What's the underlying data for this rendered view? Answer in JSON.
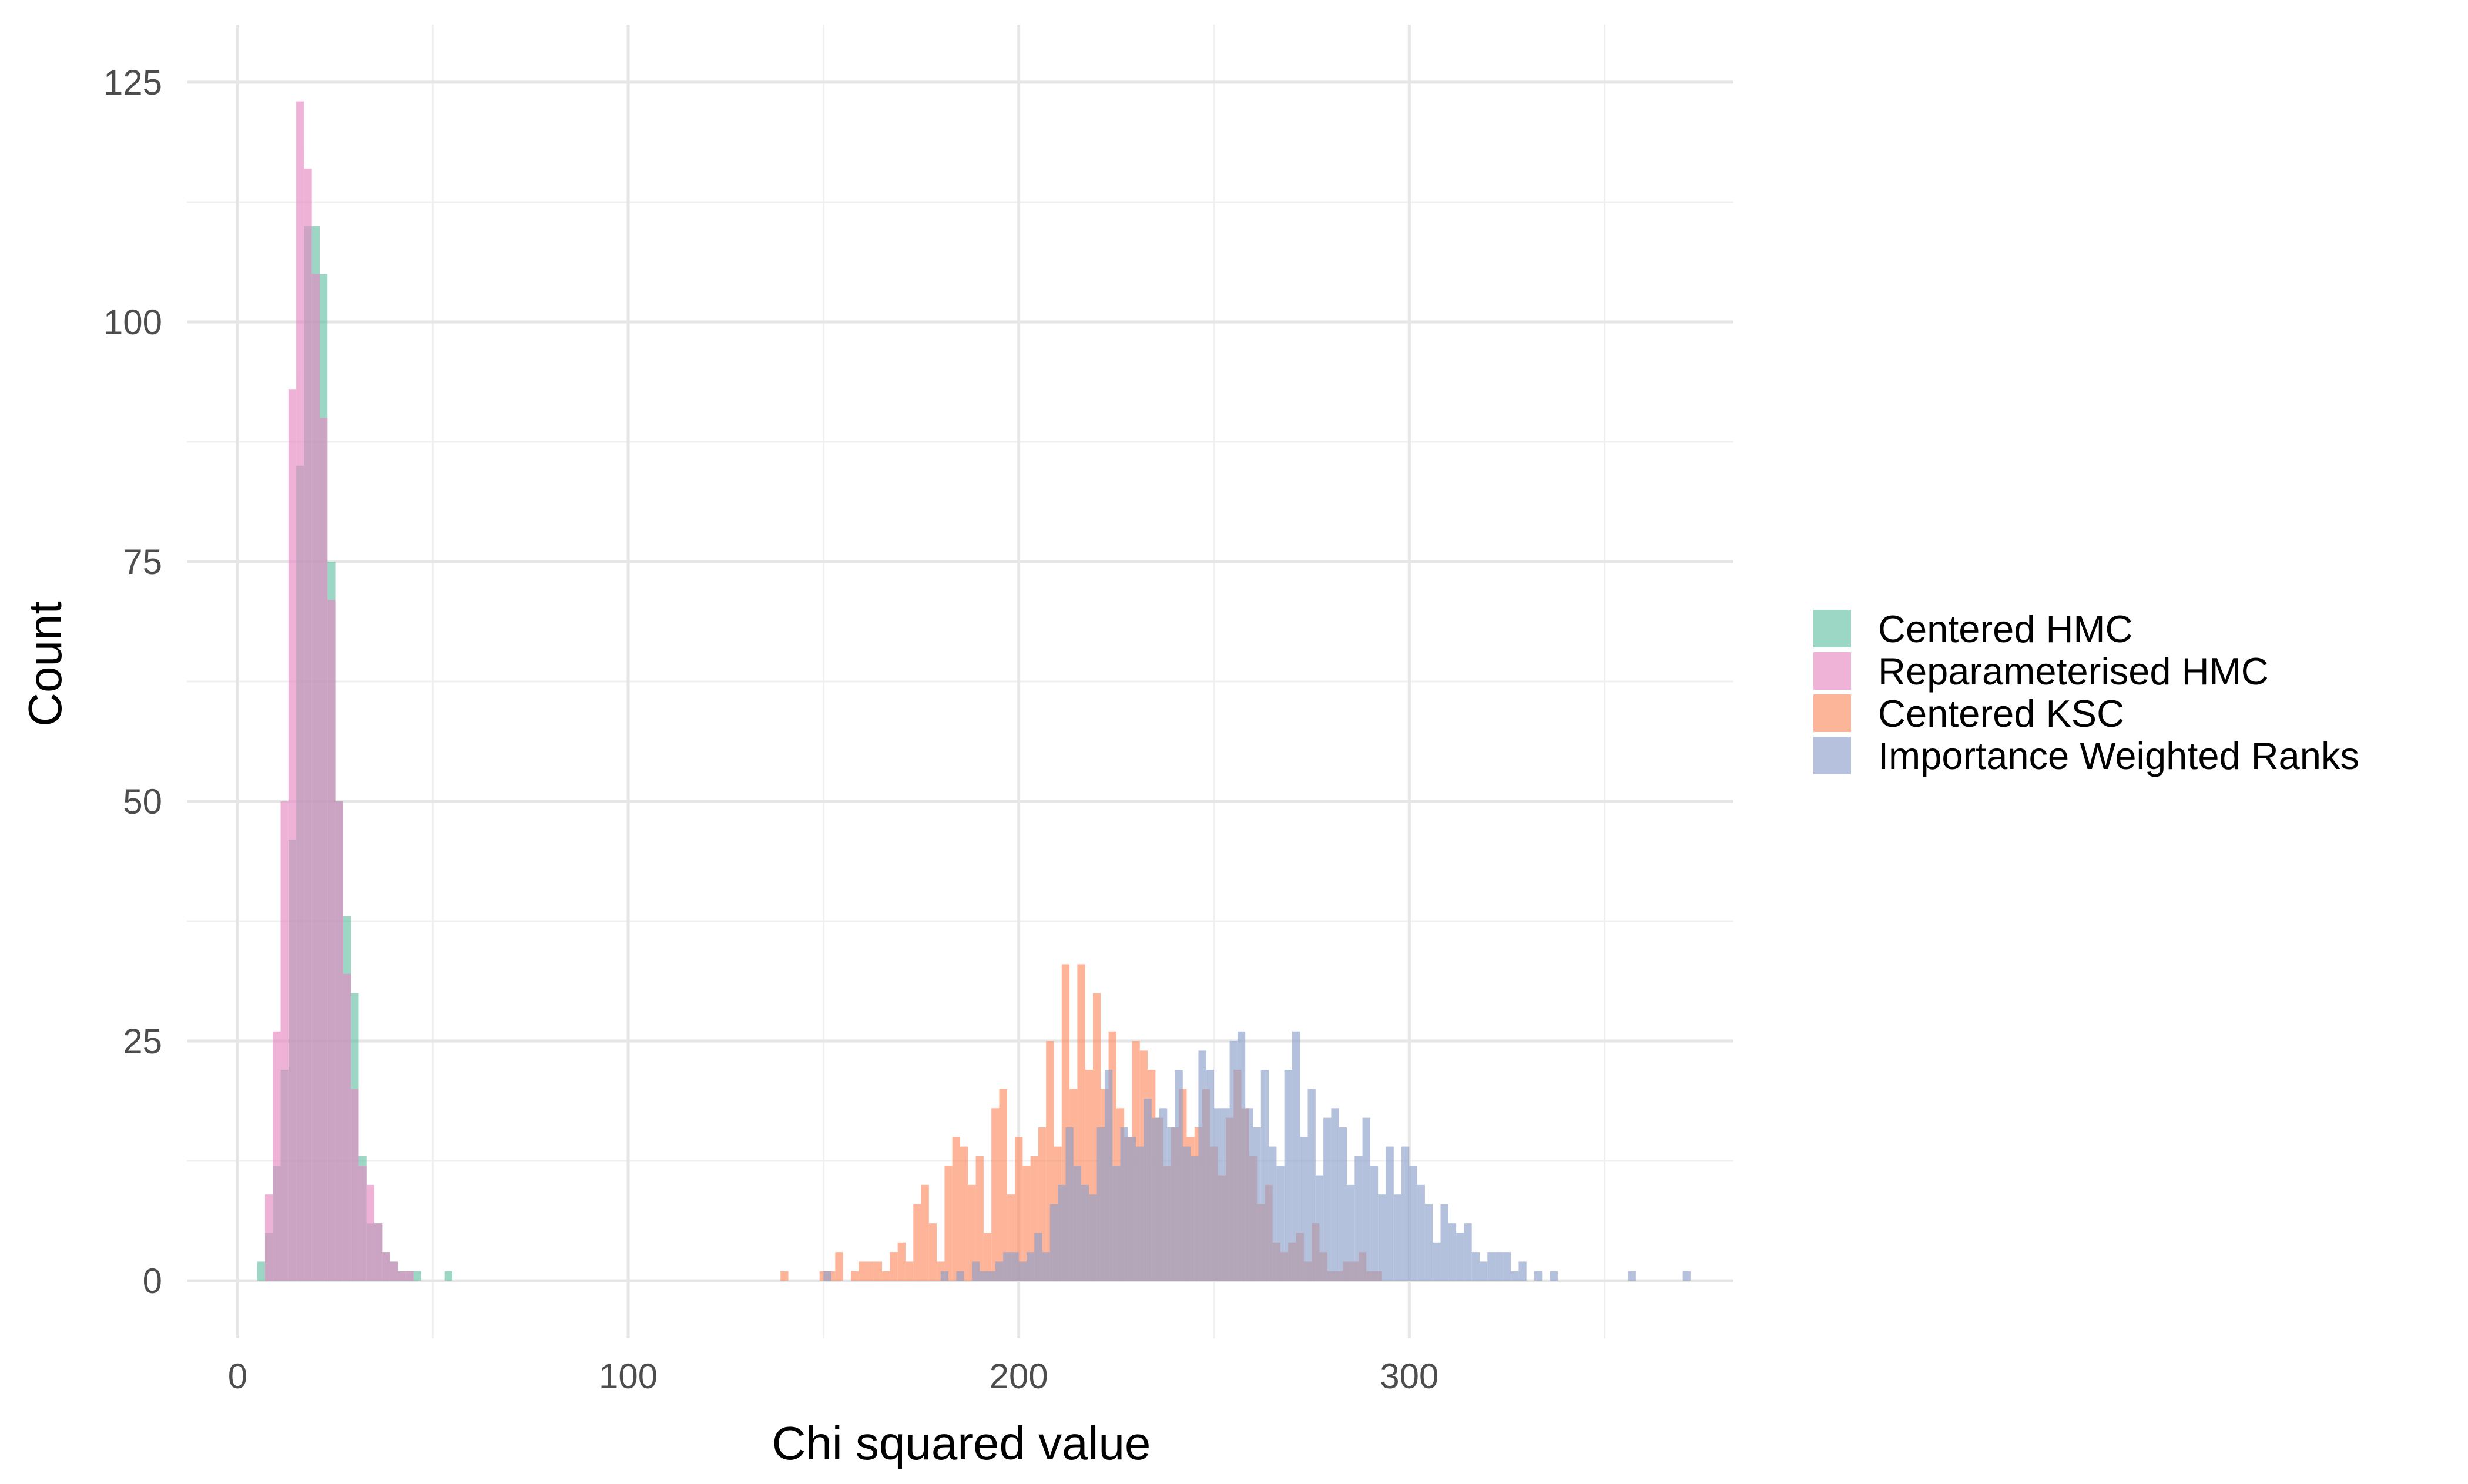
{
  "chart_data": {
    "type": "histogram",
    "title": "",
    "xlabel": "Chi squared value",
    "ylabel": "Count",
    "xlim": [
      -13,
      383
    ],
    "ylim": [
      -6,
      131
    ],
    "x_ticks": [
      0,
      100,
      200,
      300
    ],
    "x_tick_labels": [
      "0",
      "100",
      "200",
      "300"
    ],
    "y_ticks": [
      0,
      25,
      50,
      75,
      100,
      125
    ],
    "y_tick_labels": [
      "0",
      "25",
      "50",
      "75",
      "100",
      "125"
    ],
    "x_minor_ticks": [
      50,
      150,
      250,
      350
    ],
    "y_minor_ticks": [
      12.5,
      37.5,
      62.5,
      87.5,
      112.5
    ],
    "grid": true,
    "legend_position": "right",
    "bin_width": 2,
    "series": [
      {
        "name": "Centered HMC",
        "color": "#66c2a5",
        "bin_start": 5,
        "counts": [
          2,
          5,
          12,
          22,
          46,
          85,
          110,
          110,
          105,
          75,
          50,
          38,
          30,
          13,
          6,
          6,
          3,
          2,
          1,
          1,
          1,
          0,
          0,
          0,
          1
        ]
      },
      {
        "name": "Reparameterised HMC",
        "color": "#e78ac3",
        "bin_start": 7,
        "counts": [
          9,
          26,
          50,
          93,
          123,
          116,
          105,
          90,
          71,
          50,
          32,
          20,
          12,
          10,
          6,
          3,
          2,
          1,
          1
        ]
      },
      {
        "name": "Centered KSC",
        "color": "#fc8d62",
        "bin_start": 139,
        "counts": [
          1,
          0,
          0,
          0,
          0,
          1,
          1,
          3,
          0,
          1,
          2,
          2,
          2,
          1,
          3,
          4,
          2,
          8,
          10,
          6,
          2,
          12,
          15,
          14,
          10,
          13,
          5,
          18,
          20,
          9,
          15,
          12,
          13,
          16,
          25,
          14,
          33,
          20,
          33,
          22,
          30,
          20,
          26,
          18,
          15,
          25,
          24,
          22,
          17,
          12,
          16,
          20,
          15,
          16,
          20,
          14,
          11,
          17,
          22,
          18,
          13,
          8,
          10,
          4,
          3,
          4,
          5,
          2,
          6,
          3,
          1,
          1,
          2,
          2,
          3,
          1,
          1
        ]
      },
      {
        "name": "Importance Weighted Ranks",
        "color": "#8da0cb",
        "bin_start": 150,
        "counts": [
          1,
          0,
          0,
          0,
          0,
          0,
          0,
          0,
          0,
          0,
          0,
          0,
          0,
          0,
          0,
          1,
          0,
          1,
          0,
          2,
          1,
          1,
          2,
          3,
          3,
          2,
          3,
          5,
          3,
          8,
          10,
          16,
          12,
          10,
          9,
          16,
          22,
          12,
          16,
          15,
          14,
          19,
          17,
          18,
          16,
          22,
          14,
          13,
          24,
          22,
          18,
          18,
          25,
          26,
          18,
          16,
          22,
          14,
          12,
          22,
          26,
          15,
          20,
          11,
          17,
          18,
          16,
          10,
          13,
          17,
          12,
          9,
          14,
          9,
          14,
          12,
          10,
          8,
          4,
          8,
          6,
          5,
          6,
          3,
          2,
          3,
          3,
          3,
          1,
          2,
          0,
          1,
          0,
          1,
          0,
          0,
          0,
          0,
          0,
          0,
          0,
          0,
          0,
          1,
          0,
          0,
          0,
          0,
          0,
          0,
          1
        ]
      }
    ]
  }
}
